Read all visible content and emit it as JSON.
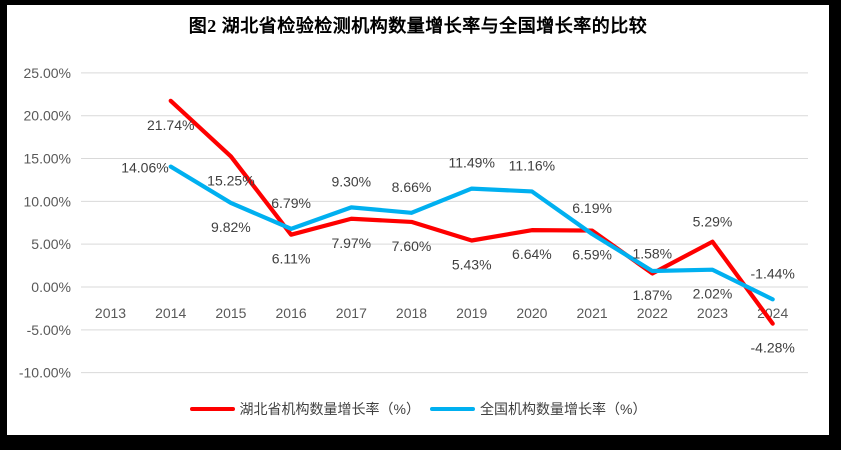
{
  "chart_data": {
    "type": "line",
    "title": "图2  湖北省检验检测机构数量增长率与全国增长率的比较",
    "categories": [
      "2013",
      "2014",
      "2015",
      "2016",
      "2017",
      "2018",
      "2019",
      "2020",
      "2021",
      "2022",
      "2023",
      "2024"
    ],
    "series": [
      {
        "name": "湖北省机构数量增长率（%）",
        "color": "#FE0000",
        "values": [
          null,
          21.74,
          15.25,
          6.11,
          7.97,
          7.6,
          5.43,
          6.64,
          6.59,
          1.58,
          5.29,
          -4.28
        ],
        "label_positions": [
          null,
          "below",
          "below",
          "below",
          "below",
          "below",
          "below",
          "below",
          "below",
          "above",
          "above",
          "below"
        ]
      },
      {
        "name": "全国机构数量增长率（%）",
        "color": "#00B0F0",
        "values": [
          null,
          14.06,
          9.82,
          6.79,
          9.3,
          8.66,
          11.49,
          11.16,
          6.19,
          1.87,
          2.02,
          -1.44
        ],
        "label_positions": [
          null,
          "left",
          "below",
          "above",
          "above",
          "above",
          "above",
          "above",
          "above",
          "below",
          "below",
          "above"
        ]
      }
    ],
    "ylim": [
      -10,
      25
    ],
    "ytick_step": 5,
    "ytick_suffix": "%",
    "grid": true,
    "legend_position": "bottom",
    "axis_text_color": "#595959",
    "data_label_color": "#404040",
    "grid_color": "#D9D9D9"
  }
}
